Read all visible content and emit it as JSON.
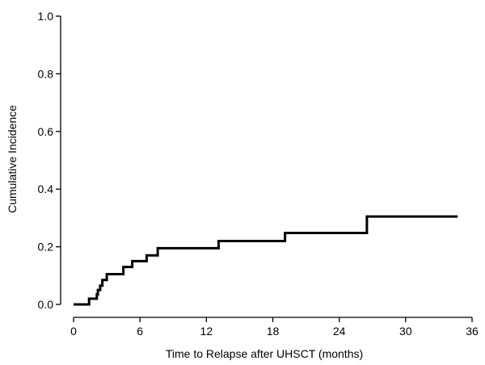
{
  "chart_data": {
    "type": "line",
    "subtype": "step",
    "title": "",
    "xlabel": "Time to Relapse after UHSCT (months)",
    "ylabel": "Cumulative Incidence",
    "xlim": [
      0,
      36
    ],
    "ylim": [
      0,
      1.0
    ],
    "xticks": [
      0,
      6,
      12,
      18,
      24,
      30,
      36
    ],
    "xtick_labels": [
      "0",
      "6",
      "12",
      "18",
      "24",
      "30",
      "36"
    ],
    "yticks": [
      0,
      0.2,
      0.4,
      0.6,
      0.8,
      1.0
    ],
    "ytick_labels": [
      "0.0",
      "0.2",
      "0.4",
      "0.6",
      "0.8",
      "1.0"
    ],
    "grid": false,
    "line_color": "#000000",
    "series": [
      {
        "x": [
          0,
          1.4,
          2.1,
          2.2,
          2.4,
          2.6,
          3.0,
          4.5,
          5.3,
          6.6,
          7.6,
          13.1,
          19.1,
          26.5,
          34.7
        ],
        "y": [
          0,
          0.02,
          0.035,
          0.05,
          0.065,
          0.085,
          0.105,
          0.13,
          0.15,
          0.17,
          0.195,
          0.22,
          0.248,
          0.305,
          0.305
        ]
      }
    ]
  }
}
